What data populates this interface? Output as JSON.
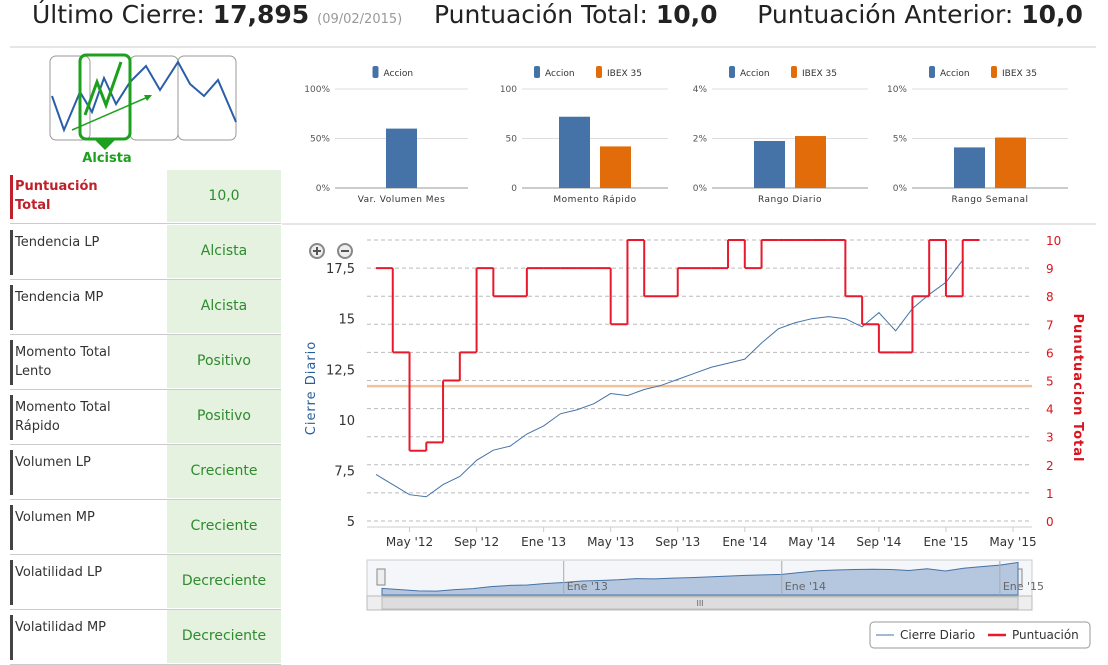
{
  "header": {
    "last_close_label": "Último Cierre:",
    "last_close": "17,895",
    "date": "(09/02/2015)",
    "total_label": "Puntuación Total:",
    "total": "10,0",
    "prev_label": "Puntuación Anterior:",
    "prev": "10,0"
  },
  "trend_icon": {
    "label": "Alcista"
  },
  "table": {
    "rows": [
      [
        "Puntuación Total",
        "10,0"
      ],
      [
        "Tendencia LP",
        "Alcista"
      ],
      [
        "Tendencia MP",
        "Alcista"
      ],
      [
        "Momento Total Lento",
        "Positivo"
      ],
      [
        "Momento Total Rápido",
        "Positivo"
      ],
      [
        "Volumen LP",
        "Creciente"
      ],
      [
        "Volumen MP",
        "Creciente"
      ],
      [
        "Volatilidad LP",
        "Decreciente"
      ],
      [
        "Volatilidad MP",
        "Decreciente"
      ]
    ]
  },
  "chart_data": [
    {
      "type": "bar",
      "categories": [
        "Var. Volumen Mes"
      ],
      "series": [
        {
          "name": "Accion",
          "color": "#4572a7",
          "values": [
            60
          ]
        }
      ],
      "ylim": [
        0,
        100
      ],
      "yticks": [
        {
          "value": 0,
          "label": "0%"
        },
        {
          "value": 50,
          "label": "50%"
        },
        {
          "value": 100,
          "label": "100%"
        }
      ]
    },
    {
      "type": "bar",
      "categories": [
        "Momento Rápido"
      ],
      "series": [
        {
          "name": "Accion",
          "color": "#4572a7",
          "values": [
            72
          ]
        },
        {
          "name": "IBEX 35",
          "color": "#e36c0a",
          "values": [
            42
          ]
        }
      ],
      "ylim": [
        0,
        100
      ],
      "yticks": [
        0,
        50,
        100
      ]
    },
    {
      "type": "bar",
      "categories": [
        "Rango Diario"
      ],
      "series": [
        {
          "name": "Accion",
          "color": "#4572a7",
          "values": [
            1.9
          ]
        },
        {
          "name": "IBEX 35",
          "color": "#e36c0a",
          "values": [
            2.1
          ]
        }
      ],
      "ylim": [
        0,
        4
      ],
      "yticks": [
        {
          "value": 0,
          "label": "0%"
        },
        {
          "value": 2,
          "label": "2%"
        },
        {
          "value": 4,
          "label": "4%"
        }
      ]
    },
    {
      "type": "bar",
      "categories": [
        "Rango Semanal"
      ],
      "series": [
        {
          "name": "Accion",
          "color": "#4572a7",
          "values": [
            4.1
          ]
        },
        {
          "name": "IBEX 35",
          "color": "#e36c0a",
          "values": [
            5.1
          ]
        }
      ],
      "ylim": [
        0,
        10
      ],
      "yticks": [
        {
          "value": 0,
          "label": "0%"
        },
        {
          "value": 5,
          "label": "5%"
        },
        {
          "value": 10,
          "label": "10%"
        }
      ]
    },
    {
      "type": "line",
      "ylabel": "Cierre Diario",
      "y2label": "Punutuacion Total",
      "x": [
        "2012-03",
        "2012-04",
        "2012-05",
        "2012-06",
        "2012-07",
        "2012-08",
        "2012-09",
        "2012-10",
        "2012-11",
        "2012-12",
        "2013-01",
        "2013-02",
        "2013-03",
        "2013-04",
        "2013-05",
        "2013-06",
        "2013-07",
        "2013-08",
        "2013-09",
        "2013-10",
        "2013-11",
        "2013-12",
        "2014-01",
        "2014-02",
        "2014-03",
        "2014-04",
        "2014-05",
        "2014-06",
        "2014-07",
        "2014-08",
        "2014-09",
        "2014-10",
        "2014-11",
        "2014-12",
        "2015-01",
        "2015-02"
      ],
      "series": [
        {
          "name": "Cierre Diario",
          "color": "#4572a7",
          "axis": "y",
          "values": [
            7.3,
            6.8,
            6.3,
            6.2,
            6.8,
            7.2,
            8.0,
            8.5,
            8.7,
            9.3,
            9.7,
            10.3,
            10.5,
            10.8,
            11.3,
            11.2,
            11.5,
            11.7,
            12.0,
            12.3,
            12.6,
            12.8,
            13.0,
            13.8,
            14.5,
            14.8,
            15.0,
            15.1,
            15.0,
            14.6,
            15.3,
            14.4,
            15.5,
            16.2,
            16.8,
            17.9
          ]
        },
        {
          "name": "Puntuación",
          "color": "#e8192c",
          "axis": "y2",
          "step": true,
          "values": [
            9,
            6,
            2.5,
            2.8,
            5,
            6,
            9,
            8,
            8,
            9,
            9,
            9,
            9,
            9,
            7,
            10,
            8,
            8,
            9,
            9,
            9,
            10,
            9,
            10,
            10,
            10,
            10,
            10,
            8,
            7,
            6,
            6,
            8,
            10,
            8,
            10
          ]
        }
      ],
      "xlim": [
        "2012-03",
        "2015-05"
      ],
      "xticks": [
        {
          "value": "2012-05",
          "label": "May '12"
        },
        {
          "value": "2012-09",
          "label": "Sep '12"
        },
        {
          "value": "2013-01",
          "label": "Ene '13"
        },
        {
          "value": "2013-05",
          "label": "May '13"
        },
        {
          "value": "2013-09",
          "label": "Sep '13"
        },
        {
          "value": "2014-01",
          "label": "Ene '14"
        },
        {
          "value": "2014-05",
          "label": "May '14"
        },
        {
          "value": "2014-09",
          "label": "Sep '14"
        },
        {
          "value": "2015-01",
          "label": "Ene '15"
        },
        {
          "value": "2015-05",
          "label": "May '15"
        }
      ],
      "ylim": [
        5,
        18.89
      ],
      "yticks": [
        5,
        {
          "value": 7.5,
          "label": "7,5"
        },
        10,
        {
          "value": 12.5,
          "label": "12,5"
        },
        15,
        {
          "value": 17.5,
          "label": "17,5"
        }
      ],
      "y2lim": [
        0,
        10
      ],
      "y2ticks": [
        0,
        1,
        2,
        3,
        4,
        5,
        6,
        7,
        8,
        9,
        10
      ],
      "reference_line": {
        "value": 4.8,
        "axis": "y2",
        "color": "#f2c29c"
      },
      "navigator_ticks": [
        {
          "value": "2013-01",
          "label": "Ene '13"
        },
        {
          "value": "2014-01",
          "label": "Ene '14"
        },
        {
          "value": "2015-01",
          "label": "Ene '15"
        }
      ],
      "grid": true,
      "legend": "bottom-right"
    }
  ]
}
